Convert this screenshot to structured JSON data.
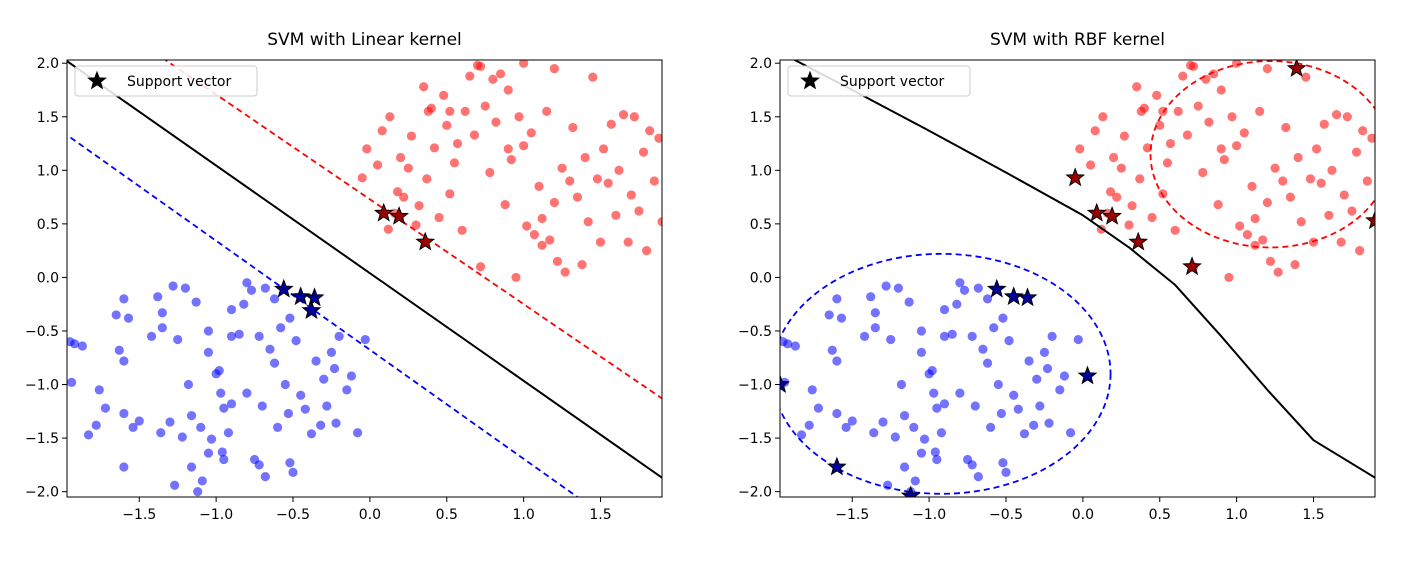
{
  "chart_data": [
    {
      "type": "scatter",
      "title": "SVM with Linear kernel",
      "xlabel": "",
      "ylabel": "",
      "xlim": [
        -1.97,
        1.9
      ],
      "ylim": [
        -2.05,
        2.03
      ],
      "xticks": [
        -1.5,
        -1.0,
        -0.5,
        0.0,
        0.5,
        1.0,
        1.5
      ],
      "yticks": [
        -2.0,
        -1.5,
        -1.0,
        -0.5,
        0.0,
        0.5,
        1.0,
        1.5,
        2.0
      ],
      "xtick_labels": [
        "−1.5",
        "−1.0",
        "−0.5",
        "0.0",
        "0.5",
        "1.0",
        "1.5"
      ],
      "ytick_labels": [
        "−2.0",
        "−1.5",
        "−1.0",
        "−0.5",
        "0.0",
        "0.5",
        "1.0",
        "1.5",
        "2.0"
      ],
      "grid": false,
      "legend": {
        "position": "top-left",
        "entries": [
          "Support vector"
        ]
      },
      "series": [
        {
          "class": "negative",
          "color": "#0000ff",
          "marker": "circle",
          "points": [
            [
              -1.95,
              -0.6
            ],
            [
              -1.92,
              -0.62
            ],
            [
              -1.94,
              -0.98
            ],
            [
              -1.87,
              -0.64
            ],
            [
              -1.83,
              -1.47
            ],
            [
              -1.78,
              -1.38
            ],
            [
              -1.76,
              -1.05
            ],
            [
              -1.72,
              -1.22
            ],
            [
              -1.65,
              -0.35
            ],
            [
              -1.63,
              -0.68
            ],
            [
              -1.6,
              -0.2
            ],
            [
              -1.6,
              -0.78
            ],
            [
              -1.57,
              -0.38
            ],
            [
              -1.54,
              -1.4
            ],
            [
              -1.5,
              -1.34
            ],
            [
              -1.6,
              -1.77
            ],
            [
              -1.6,
              -1.27
            ],
            [
              -1.42,
              -0.55
            ],
            [
              -1.38,
              -0.18
            ],
            [
              -1.35,
              -0.33
            ],
            [
              -1.35,
              -0.47
            ],
            [
              -1.36,
              -1.45
            ],
            [
              -1.3,
              -1.35
            ],
            [
              -1.28,
              -0.08
            ],
            [
              -1.27,
              -1.94
            ],
            [
              -1.25,
              -0.58
            ],
            [
              -1.22,
              -1.49
            ],
            [
              -1.2,
              -0.1
            ],
            [
              -1.18,
              -1.0
            ],
            [
              -1.16,
              -1.29
            ],
            [
              -1.16,
              -1.77
            ],
            [
              -1.13,
              -0.23
            ],
            [
              -1.12,
              -2.0
            ],
            [
              -1.1,
              -1.4
            ],
            [
              -1.09,
              -1.9
            ],
            [
              -1.05,
              -0.5
            ],
            [
              -1.05,
              -0.7
            ],
            [
              -1.03,
              -1.51
            ],
            [
              -1.0,
              -0.9
            ],
            [
              -0.98,
              -0.87
            ],
            [
              -0.97,
              -1.08
            ],
            [
              -0.96,
              -1.63
            ],
            [
              -0.95,
              -1.7
            ],
            [
              -0.92,
              -1.45
            ],
            [
              -0.9,
              -0.55
            ],
            [
              -0.9,
              -1.18
            ],
            [
              -0.9,
              -0.3
            ],
            [
              -0.85,
              -0.53
            ],
            [
              -0.82,
              -0.25
            ],
            [
              -0.8,
              -1.08
            ],
            [
              -0.77,
              -0.12
            ],
            [
              -0.75,
              -1.7
            ],
            [
              -0.72,
              -1.75
            ],
            [
              -0.72,
              -0.55
            ],
            [
              -0.7,
              -1.2
            ],
            [
              -0.68,
              -1.86
            ],
            [
              -0.65,
              -0.67
            ],
            [
              -0.62,
              -0.8
            ],
            [
              -0.6,
              -1.4
            ],
            [
              -0.58,
              -0.47
            ],
            [
              -0.55,
              -1.0
            ],
            [
              -0.53,
              -1.27
            ],
            [
              -0.52,
              -1.73
            ],
            [
              -0.5,
              -1.82
            ],
            [
              -0.48,
              -0.59
            ],
            [
              -0.45,
              -1.1
            ],
            [
              -0.42,
              -1.23
            ],
            [
              -0.38,
              -1.46
            ],
            [
              -0.35,
              -0.78
            ],
            [
              -0.32,
              -1.38
            ],
            [
              -0.3,
              -0.95
            ],
            [
              -0.28,
              -1.2
            ],
            [
              -0.25,
              -0.7
            ],
            [
              -0.23,
              -0.85
            ],
            [
              -0.22,
              -1.36
            ],
            [
              -0.2,
              -0.55
            ],
            [
              -0.15,
              -1.05
            ],
            [
              -0.12,
              -0.92
            ],
            [
              -0.08,
              -1.45
            ],
            [
              -0.03,
              -0.58
            ],
            [
              -0.62,
              -0.2
            ],
            [
              -0.68,
              -0.1
            ],
            [
              -0.52,
              -0.38
            ],
            [
              -0.8,
              -0.05
            ],
            [
              -0.95,
              -1.22
            ],
            [
              -1.05,
              -1.64
            ]
          ]
        },
        {
          "class": "positive",
          "color": "#ff0000",
          "marker": "circle",
          "points": [
            [
              -0.05,
              0.93
            ],
            [
              -0.02,
              1.2
            ],
            [
              0.05,
              1.05
            ],
            [
              0.08,
              1.37
            ],
            [
              0.12,
              0.45
            ],
            [
              0.13,
              1.5
            ],
            [
              0.16,
              0.6
            ],
            [
              0.18,
              0.8
            ],
            [
              0.2,
              1.12
            ],
            [
              0.22,
              0.75
            ],
            [
              0.25,
              1.02
            ],
            [
              0.27,
              1.32
            ],
            [
              0.3,
              0.49
            ],
            [
              0.32,
              0.67
            ],
            [
              0.35,
              1.78
            ],
            [
              0.37,
              0.92
            ],
            [
              0.4,
              1.58
            ],
            [
              0.42,
              1.21
            ],
            [
              0.45,
              0.56
            ],
            [
              0.48,
              1.7
            ],
            [
              0.5,
              1.42
            ],
            [
              0.52,
              0.78
            ],
            [
              0.55,
              1.07
            ],
            [
              0.57,
              1.25
            ],
            [
              0.6,
              0.44
            ],
            [
              0.62,
              1.55
            ],
            [
              0.65,
              1.88
            ],
            [
              0.68,
              1.33
            ],
            [
              0.7,
              1.98
            ],
            [
              0.72,
              0.1
            ],
            [
              0.75,
              1.6
            ],
            [
              0.78,
              0.98
            ],
            [
              0.8,
              1.85
            ],
            [
              0.82,
              1.45
            ],
            [
              0.85,
              1.9
            ],
            [
              0.88,
              0.68
            ],
            [
              0.9,
              1.75
            ],
            [
              0.92,
              1.1
            ],
            [
              0.95,
              0.0
            ],
            [
              0.97,
              1.5
            ],
            [
              1.0,
              1.23
            ],
            [
              1.02,
              0.48
            ],
            [
              1.05,
              1.35
            ],
            [
              1.07,
              0.4
            ],
            [
              1.1,
              0.85
            ],
            [
              1.12,
              0.55
            ],
            [
              1.15,
              1.55
            ],
            [
              1.17,
              0.35
            ],
            [
              1.2,
              0.7
            ],
            [
              1.22,
              0.15
            ],
            [
              1.25,
              1.02
            ],
            [
              1.27,
              0.05
            ],
            [
              1.3,
              0.9
            ],
            [
              1.32,
              1.4
            ],
            [
              1.35,
              0.75
            ],
            [
              1.38,
              0.12
            ],
            [
              1.4,
              1.12
            ],
            [
              1.42,
              0.52
            ],
            [
              1.45,
              1.87
            ],
            [
              1.48,
              0.92
            ],
            [
              1.5,
              0.33
            ],
            [
              1.52,
              1.2
            ],
            [
              1.55,
              0.88
            ],
            [
              1.57,
              1.43
            ],
            [
              1.6,
              0.58
            ],
            [
              1.62,
              1.0
            ],
            [
              1.65,
              1.52
            ],
            [
              1.68,
              0.33
            ],
            [
              1.7,
              0.77
            ],
            [
              1.72,
              1.5
            ],
            [
              1.75,
              0.62
            ],
            [
              1.78,
              1.17
            ],
            [
              1.8,
              0.25
            ],
            [
              1.82,
              1.37
            ],
            [
              1.85,
              0.9
            ],
            [
              1.88,
              1.3
            ],
            [
              1.9,
              0.52
            ],
            [
              0.72,
              1.97
            ],
            [
              1.0,
              2.0
            ],
            [
              0.52,
              1.55
            ],
            [
              0.38,
              1.55
            ],
            [
              1.2,
              1.95
            ],
            [
              0.9,
              1.2
            ],
            [
              1.12,
              0.3
            ]
          ]
        }
      ],
      "support_vectors": [
        [
          0.09,
          0.6
        ],
        [
          0.19,
          0.57
        ],
        [
          0.36,
          0.33
        ],
        [
          -0.56,
          -0.11
        ],
        [
          -0.45,
          -0.18
        ],
        [
          -0.36,
          -0.19
        ],
        [
          -0.38,
          -0.31
        ]
      ],
      "decision_boundary": {
        "type": "line",
        "style": "solid",
        "color": "#000000",
        "points": [
          [
            -2.0,
            2.05
          ],
          [
            1.9,
            -1.87
          ]
        ]
      },
      "margins": [
        {
          "style": "dashed",
          "color": "#ff0000",
          "points": [
            [
              -1.35,
              2.05
            ],
            [
              1.9,
              -1.13
            ]
          ]
        },
        {
          "style": "dashed",
          "color": "#0000ff",
          "points": [
            [
              -2.0,
              1.36
            ],
            [
              1.35,
              -2.05
            ]
          ]
        }
      ]
    },
    {
      "type": "scatter",
      "title": "SVM with RBF kernel",
      "xlabel": "",
      "ylabel": "",
      "xlim": [
        -1.97,
        1.9
      ],
      "ylim": [
        -2.05,
        2.03
      ],
      "xticks": [
        -1.5,
        -1.0,
        -0.5,
        0.0,
        0.5,
        1.0,
        1.5
      ],
      "yticks": [
        -2.0,
        -1.5,
        -1.0,
        -0.5,
        0.0,
        0.5,
        1.0,
        1.5,
        2.0
      ],
      "xtick_labels": [
        "−1.5",
        "−1.0",
        "−0.5",
        "0.0",
        "0.5",
        "1.0",
        "1.5"
      ],
      "ytick_labels": [
        "−2.0",
        "−1.5",
        "−1.0",
        "−0.5",
        "0.0",
        "0.5",
        "1.0",
        "1.5",
        "2.0"
      ],
      "grid": false,
      "legend": {
        "position": "top-left",
        "entries": [
          "Support vector"
        ]
      },
      "series_ref": "same data points as the linear kernel panel",
      "support_vectors": [
        [
          -0.05,
          0.93
        ],
        [
          0.09,
          0.6
        ],
        [
          0.19,
          0.57
        ],
        [
          0.36,
          0.33
        ],
        [
          0.71,
          0.1
        ],
        [
          1.39,
          1.95
        ],
        [
          1.9,
          0.53
        ],
        [
          -0.56,
          -0.11
        ],
        [
          -0.45,
          -0.18
        ],
        [
          -0.36,
          -0.19
        ],
        [
          0.03,
          -0.92
        ],
        [
          -1.97,
          -1.0
        ],
        [
          -1.6,
          -1.77
        ],
        [
          -1.12,
          -2.04
        ]
      ],
      "decision_boundary": {
        "type": "curve",
        "style": "solid",
        "color": "#000000",
        "points": [
          [
            -1.9,
            2.05
          ],
          [
            -1.5,
            1.75
          ],
          [
            -1.0,
            1.37
          ],
          [
            -0.5,
            0.98
          ],
          [
            0.0,
            0.58
          ],
          [
            0.3,
            0.28
          ],
          [
            0.6,
            -0.07
          ],
          [
            0.9,
            -0.55
          ],
          [
            1.2,
            -1.05
          ],
          [
            1.5,
            -1.52
          ],
          [
            1.9,
            -1.87
          ]
        ]
      },
      "margins": [
        {
          "style": "dashed",
          "color": "#ff0000",
          "shape": "ellipse",
          "center": [
            1.22,
            1.15
          ],
          "radius": [
            0.78,
            0.87
          ]
        },
        {
          "style": "dashed",
          "color": "#0000ff",
          "shape": "ellipse",
          "center": [
            -0.92,
            -0.9
          ],
          "radius": [
            1.1,
            1.12
          ]
        }
      ]
    }
  ]
}
